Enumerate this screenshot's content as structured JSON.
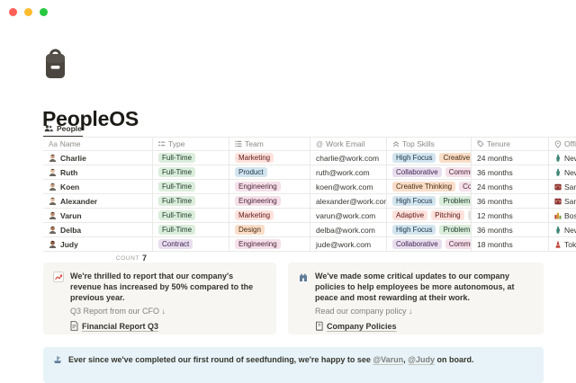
{
  "window": {
    "traffic_lights": {
      "close": "#ff5f57",
      "minimize": "#febc2e",
      "zoom": "#28c840"
    }
  },
  "page": {
    "icon": "backpack",
    "title": "PeopleOS"
  },
  "tab": {
    "icon": "people-group",
    "label": "People"
  },
  "table": {
    "columns": [
      {
        "label": "Name",
        "icon": "text-Aa"
      },
      {
        "label": "Type",
        "icon": "select-list"
      },
      {
        "label": "Team",
        "icon": "multi-select-list"
      },
      {
        "label": "Work Email",
        "icon": "at-sign"
      },
      {
        "label": "Top Skills",
        "icon": "double-chevron-up"
      },
      {
        "label": "Tenure",
        "icon": "tag"
      },
      {
        "label": "Office",
        "icon": "location-pin"
      }
    ],
    "rows": [
      {
        "name": "Charlie",
        "avatar_tone": "#c9a187",
        "type": {
          "label": "Full-Time",
          "color": "green"
        },
        "team": {
          "label": "Marketing",
          "color": "red"
        },
        "email": "charlie@work.com",
        "skills": [
          {
            "label": "High Focus",
            "color": "blue"
          },
          {
            "label": "Creative Think",
            "color": "orange"
          }
        ],
        "tenure": "24 months",
        "office": {
          "label": "New Y",
          "icon": "statue-of-liberty"
        }
      },
      {
        "name": "Ruth",
        "avatar_tone": "#e3bfa1",
        "type": {
          "label": "Full-Time",
          "color": "green"
        },
        "team": {
          "label": "Product",
          "color": "blue"
        },
        "email": "ruth@work.com",
        "skills": [
          {
            "label": "Collaborative",
            "color": "purple"
          },
          {
            "label": "Communicat",
            "color": "pink"
          }
        ],
        "tenure": "36 months",
        "office": {
          "label": "New Y",
          "icon": "statue-of-liberty"
        }
      },
      {
        "name": "Koen",
        "avatar_tone": "#c9a187",
        "type": {
          "label": "Full-Time",
          "color": "green"
        },
        "team": {
          "label": "Engineering",
          "color": "pink"
        },
        "email": "koen@work.com",
        "skills": [
          {
            "label": "Creative Thinking",
            "color": "orange"
          },
          {
            "label": "Commu",
            "color": "pink"
          }
        ],
        "tenure": "24 months",
        "office": {
          "label": "San F",
          "icon": "bridge"
        }
      },
      {
        "name": "Alexander",
        "avatar_tone": "#e3bfa1",
        "type": {
          "label": "Full-Time",
          "color": "green"
        },
        "team": {
          "label": "Engineering",
          "color": "pink"
        },
        "email": "alexander@work.com",
        "skills": [
          {
            "label": "High Focus",
            "color": "blue"
          },
          {
            "label": "Problem Solve",
            "color": "green"
          }
        ],
        "tenure": "36 months",
        "office": {
          "label": "San F",
          "icon": "bridge"
        }
      },
      {
        "name": "Varun",
        "avatar_tone": "#b98a6d",
        "type": {
          "label": "Full-Time",
          "color": "green"
        },
        "team": {
          "label": "Marketing",
          "color": "red"
        },
        "email": "varun@work.com",
        "skills": [
          {
            "label": "Adaptive",
            "color": "red"
          },
          {
            "label": "Pitching",
            "color": "red"
          },
          {
            "label": "Contr",
            "color": "gray"
          }
        ],
        "tenure": "12 months",
        "office": {
          "label": "Bost",
          "icon": "city"
        }
      },
      {
        "name": "Delba",
        "avatar_tone": "#a9765a",
        "type": {
          "label": "Full-Time",
          "color": "green"
        },
        "team": {
          "label": "Design",
          "color": "orange"
        },
        "email": "delba@work.com",
        "skills": [
          {
            "label": "High Focus",
            "color": "blue"
          },
          {
            "label": "Problem Solve",
            "color": "green"
          }
        ],
        "tenure": "36 months",
        "office": {
          "label": "New Y",
          "icon": "statue-of-liberty"
        }
      },
      {
        "name": "Judy",
        "avatar_tone": "#8a5c42",
        "type": {
          "label": "Contract",
          "color": "purple"
        },
        "team": {
          "label": "Engineering",
          "color": "pink"
        },
        "email": "jude@work.com",
        "skills": [
          {
            "label": "Collaborative",
            "color": "purple"
          },
          {
            "label": "Communicat",
            "color": "pink"
          }
        ],
        "tenure": "18 months",
        "office": {
          "label": "Tokyo",
          "icon": "tokyo-tower"
        }
      }
    ],
    "count_label": "COUNT",
    "count_value": "7"
  },
  "palette": {
    "green": {
      "bg": "#dbeddb",
      "text": "#1c3829"
    },
    "blue": {
      "bg": "#d3e5ef",
      "text": "#183347"
    },
    "orange": {
      "bg": "#fadec9",
      "text": "#49290e"
    },
    "purple": {
      "bg": "#e8deee",
      "text": "#412454"
    },
    "pink": {
      "bg": "#f5e0e9",
      "text": "#4c2337"
    },
    "red": {
      "bg": "#ffe2dd",
      "text": "#5d1715"
    },
    "gray": {
      "bg": "#e3e2e0",
      "text": "#32302c"
    }
  },
  "callouts": {
    "revenue": {
      "icon": "chart-increasing",
      "bg": "#f7f6f3",
      "title": "We're thrilled to report that our company's revenue has increased by 50% compared to the previous year.",
      "subtitle": "Q3 Report from our CFO ↓",
      "link_icon": "document",
      "link_label": "Financial Report Q3"
    },
    "policy": {
      "icon": "castle",
      "bg": "#f7f6f3",
      "title": "We've made some critical updates to our company policies to help employees be more autonomous, at peace and most rewarding at their work.",
      "subtitle": "Read our company policy ↓",
      "link_icon": "book",
      "link_label": "Company Policies"
    },
    "onboarding": {
      "icon": "ship",
      "bg": "#e7f3f8",
      "text_before": "Ever since we've completed our first round of seedfunding, we're happy to see ",
      "mention_1": "@Varun",
      "separator": ", ",
      "mention_2": "@Judy",
      "text_after": " on board."
    }
  }
}
